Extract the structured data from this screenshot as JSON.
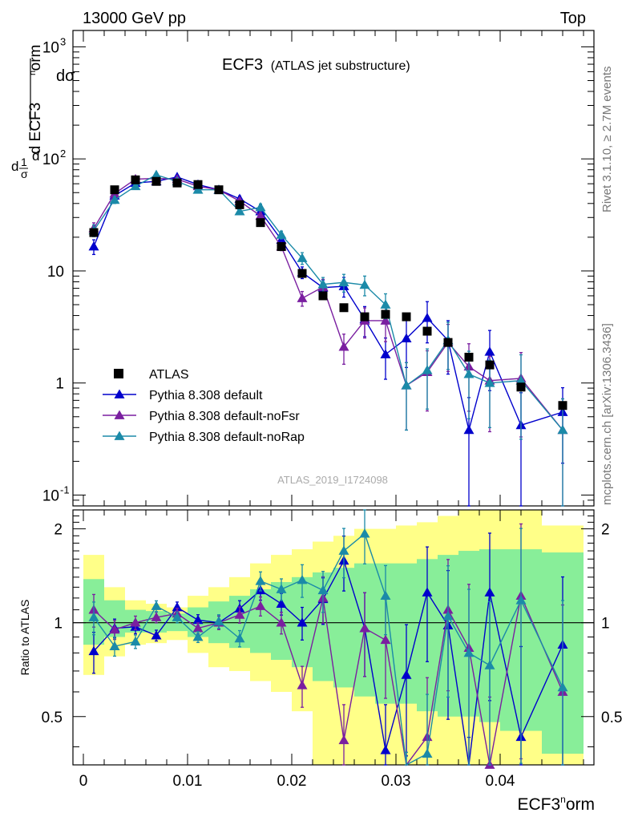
{
  "header": {
    "left": "13000 GeV pp",
    "right": "Top"
  },
  "title": {
    "main": "ECF3",
    "sub": "(ATLAS jet substructure)"
  },
  "side": {
    "rivet": "Rivet 3.1.10, ≥ 2.7M events",
    "mcplots": "mcplots.cern.ch [arXiv:1306.3436]"
  },
  "watermark": "ATLAS_2019_I1724098",
  "chart_data": {
    "type": "scatter",
    "ylabel_main": "1/σ dσ/d ECF3norm",
    "ylabel_ratio": "Ratio to ATLAS",
    "xlabel": "ECF3norm",
    "main": {
      "ylim": [
        0.08,
        1400
      ],
      "yscale": "log",
      "y_tick_labels": [
        "10^-1",
        "1",
        "10",
        "10^2",
        "10^3"
      ]
    },
    "ratio": {
      "ylim": [
        0.35,
        2.3
      ],
      "y_tick_labels": [
        "0.5",
        "1",
        "2"
      ],
      "reference_line": 1
    },
    "xlim": [
      -0.001,
      0.049
    ],
    "x_tick_labels": [
      "0",
      "0.01",
      "0.02",
      "0.03",
      "0.04"
    ],
    "bin_edges": [
      0,
      0.002,
      0.004,
      0.006,
      0.008,
      0.01,
      0.012,
      0.014,
      0.016,
      0.018,
      0.02,
      0.022,
      0.024,
      0.026,
      0.028,
      0.03,
      0.032,
      0.034,
      0.036,
      0.038,
      0.04,
      0.044,
      0.048
    ],
    "x": [
      0.001,
      0.003,
      0.005,
      0.007,
      0.009,
      0.011,
      0.013,
      0.015,
      0.017,
      0.019,
      0.021,
      0.023,
      0.025,
      0.027,
      0.029,
      0.031,
      0.033,
      0.035,
      0.037,
      0.039,
      0.042,
      0.046
    ],
    "legend": {
      "placement": "lower-left"
    },
    "data": {
      "name": "ATLAS",
      "color": "#000000",
      "values": [
        22,
        53,
        65,
        63,
        61,
        59,
        53,
        39,
        27,
        16.5,
        9.5,
        6,
        4.7,
        3.9,
        4.1,
        3.9,
        2.9,
        2.3,
        1.7,
        1.45,
        0.92,
        0.63
      ],
      "band_yellow_lo": [
        0.68,
        0.78,
        0.85,
        0.86,
        0.88,
        0.8,
        0.72,
        0.7,
        0.65,
        0.6,
        0.52,
        0.35,
        0.3,
        0.25,
        0.2,
        0.15,
        0.1,
        0.1,
        0.1,
        0.1,
        0.1,
        0.1
      ],
      "band_yellow_hi": [
        1.65,
        1.3,
        1.18,
        1.15,
        1.12,
        1.22,
        1.3,
        1.4,
        1.55,
        1.65,
        1.72,
        1.82,
        1.9,
        2.0,
        2.0,
        2.05,
        2.1,
        2.2,
        2.3,
        2.3,
        2.4,
        2.05
      ],
      "band_green_lo": [
        0.85,
        0.9,
        0.93,
        0.93,
        0.94,
        0.9,
        0.86,
        0.83,
        0.8,
        0.76,
        0.72,
        0.65,
        0.62,
        0.58,
        0.55,
        0.55,
        0.52,
        0.5,
        0.5,
        0.48,
        0.45,
        0.38
      ],
      "band_green_hi": [
        1.38,
        1.18,
        1.1,
        1.09,
        1.07,
        1.12,
        1.17,
        1.22,
        1.28,
        1.35,
        1.4,
        1.45,
        1.5,
        1.55,
        1.55,
        1.55,
        1.6,
        1.65,
        1.7,
        1.72,
        1.72,
        1.68
      ]
    },
    "series": [
      {
        "name": "Pythia 8.308 default",
        "color": "#0000cc",
        "values": [
          16.5,
          47,
          61,
          63,
          69,
          59,
          53,
          44,
          34,
          19,
          9.7,
          7.1,
          7.3,
          3.7,
          1.8,
          2.5,
          3.8,
          2.4,
          0.38,
          1.9,
          0.42,
          0.55
        ],
        "err_rel": [
          0.15,
          0.07,
          0.05,
          0.04,
          0.04,
          0.04,
          0.05,
          0.06,
          0.07,
          0.08,
          0.12,
          0.17,
          0.2,
          0.3,
          0.4,
          0.45,
          0.4,
          0.5,
          0.95,
          0.55,
          0.95,
          0.65
        ],
        "ratio": [
          0.81,
          0.96,
          0.97,
          0.91,
          1.12,
          1.02,
          1.0,
          1.11,
          1.27,
          1.15,
          1.0,
          1.19,
          1.58,
          0.96,
          0.39,
          0.68,
          1.25,
          0.98,
          0.22,
          1.25,
          0.43,
          0.85
        ]
      },
      {
        "name": "Pythia 8.308 default-noFsr",
        "color": "#7a1fa0",
        "values": [
          24,
          49,
          66,
          67,
          66,
          57,
          53,
          42,
          31,
          16.5,
          5.7,
          7.2,
          2.1,
          3.6,
          3.6,
          0.95,
          1.25,
          2.3,
          1.4,
          1.05,
          1.1,
          0.38
        ],
        "err_rel": [
          0.12,
          0.07,
          0.05,
          0.04,
          0.04,
          0.04,
          0.05,
          0.06,
          0.07,
          0.08,
          0.15,
          0.17,
          0.3,
          0.3,
          0.35,
          0.6,
          0.55,
          0.45,
          0.6,
          0.65,
          0.7,
          0.9
        ],
        "ratio": [
          1.1,
          0.95,
          1.0,
          1.04,
          1.07,
          0.96,
          1.0,
          1.06,
          1.13,
          1.0,
          0.63,
          1.2,
          0.42,
          0.96,
          0.88,
          0.24,
          0.43,
          1.1,
          0.83,
          0.35,
          1.22,
          0.6
        ]
      },
      {
        "name": "Pythia 8.308 default-noRap",
        "color": "#1b8aa8",
        "values": [
          23,
          43,
          57,
          72,
          63,
          53,
          53,
          34,
          37,
          21,
          13,
          7.6,
          7.9,
          7.5,
          5,
          0.95,
          1.3,
          2.4,
          1.2,
          1.0,
          1.05,
          0.38
        ],
        "err_rel": [
          0.12,
          0.07,
          0.05,
          0.04,
          0.04,
          0.04,
          0.05,
          0.06,
          0.07,
          0.08,
          0.12,
          0.15,
          0.18,
          0.2,
          0.25,
          0.6,
          0.55,
          0.45,
          0.6,
          0.6,
          0.7,
          0.9
        ],
        "ratio": [
          1.04,
          0.84,
          0.87,
          1.13,
          1.04,
          0.9,
          1.01,
          0.89,
          1.36,
          1.28,
          1.37,
          1.27,
          1.7,
          1.93,
          1.22,
          0.24,
          0.38,
          1.05,
          0.8,
          0.73,
          1.18,
          0.62
        ]
      }
    ]
  }
}
